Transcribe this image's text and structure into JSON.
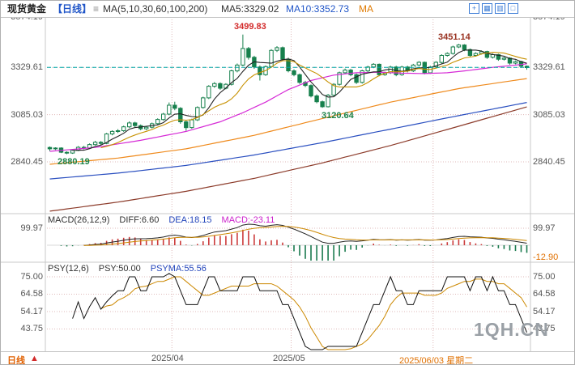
{
  "header": {
    "symbol": "现货黄金",
    "period": "【日线】",
    "menu_icon": "≡",
    "ma_settings": "MA(5,10,30,60,100,200)",
    "ma5": "MA5:3329.02",
    "ma10": "MA10:3352.73",
    "ma_extra": "MA",
    "toolbar_icons": [
      {
        "name": "crosshair-icon",
        "glyph": "+"
      },
      {
        "name": "grid-view-icon",
        "glyph": "▦"
      },
      {
        "name": "split-view-icon",
        "glyph": "▥"
      },
      {
        "name": "fullscreen-icon",
        "glyph": "□"
      }
    ]
  },
  "axis": {
    "price": {
      "t1": "3574.19",
      "t2": "3329.61",
      "t3": "3085.03",
      "t4": "2840.45"
    },
    "macd": {
      "top": "99.97",
      "last": "-12.90"
    },
    "psy": {
      "p1": "75.00",
      "p2": "64.58",
      "p3": "54.17",
      "p4": "43.75"
    }
  },
  "annotations": {
    "peak": "3499.83",
    "second_peak": "3451.14",
    "trough": "3120.64",
    "left_low": "2880.19"
  },
  "macd_row": {
    "title": "MACD(26,12,9)",
    "diff": "DIFF:6.60",
    "dea": "DEA:18.15",
    "macd": "MACD:-23.11"
  },
  "psy_row": {
    "title": "PSY(12,6)",
    "psy": "PSY:50.00",
    "psyma": "PSYMA:55.56"
  },
  "footer": {
    "period": "日线",
    "arrow": "▲",
    "date1": "2025/04",
    "date2": "2025/05",
    "date3": "2025/06/03 星期二"
  },
  "watermark": "1QH.CN",
  "chart_data": {
    "type": "candlestick",
    "title": "现货黄金 日线",
    "current_price": 3329.61,
    "price_ticks": [
      3574.19,
      3329.61,
      3085.03,
      2840.45
    ],
    "price_ylim": [
      2560,
      3600
    ],
    "macd_ticks": [
      99.97,
      -12.9
    ],
    "psy_ticks": [
      75.0,
      64.58,
      54.17,
      43.75
    ],
    "x_tick_indices": [
      22,
      43,
      68
    ],
    "x_tick_labels": [
      "2025/04",
      "2025/05",
      "2025/06/03"
    ],
    "up_color": "#ffffff",
    "down_color": "#17804d",
    "candle_outline": "#17804d",
    "ma_computed": [
      {
        "name": "MA5",
        "window": 5,
        "color": "#222222"
      },
      {
        "name": "MA10",
        "window": 10,
        "color": "#c79100"
      }
    ],
    "ma_overlays": [
      {
        "name": "MA30",
        "color": "#d62ad6",
        "points": [
          [
            0,
            2895
          ],
          [
            8,
            2915
          ],
          [
            16,
            2952
          ],
          [
            24,
            2998
          ],
          [
            30,
            3048
          ],
          [
            34,
            3095
          ],
          [
            38,
            3150
          ],
          [
            42,
            3215
          ],
          [
            46,
            3262
          ],
          [
            50,
            3290
          ],
          [
            54,
            3302
          ],
          [
            58,
            3305
          ],
          [
            62,
            3300
          ],
          [
            66,
            3298
          ],
          [
            70,
            3302
          ],
          [
            74,
            3315
          ],
          [
            78,
            3330
          ],
          [
            82,
            3342
          ],
          [
            84,
            3348
          ]
        ]
      },
      {
        "name": "MA60",
        "color": "#ef8a1c",
        "points": [
          [
            0,
            2828
          ],
          [
            12,
            2860
          ],
          [
            24,
            2908
          ],
          [
            36,
            2978
          ],
          [
            48,
            3065
          ],
          [
            60,
            3150
          ],
          [
            72,
            3220
          ],
          [
            84,
            3272
          ]
        ]
      },
      {
        "name": "MA100",
        "color": "#2a4fc0",
        "points": [
          [
            0,
            2752
          ],
          [
            12,
            2782
          ],
          [
            24,
            2822
          ],
          [
            36,
            2876
          ],
          [
            48,
            2940
          ],
          [
            60,
            3010
          ],
          [
            72,
            3080
          ],
          [
            84,
            3148
          ]
        ]
      },
      {
        "name": "MA200",
        "color": "#8c3b2a",
        "points": [
          [
            0,
            2585
          ],
          [
            12,
            2632
          ],
          [
            24,
            2688
          ],
          [
            36,
            2755
          ],
          [
            48,
            2835
          ],
          [
            60,
            2925
          ],
          [
            72,
            3025
          ],
          [
            84,
            3125
          ]
        ]
      }
    ],
    "candles": [
      [
        2915,
        2920,
        2896,
        2908
      ],
      [
        2908,
        2916,
        2902,
        2912
      ],
      [
        2912,
        2916,
        2886,
        2890
      ],
      [
        2890,
        2895,
        2880.19,
        2886
      ],
      [
        2886,
        2906,
        2882,
        2900
      ],
      [
        2900,
        2922,
        2896,
        2916
      ],
      [
        2916,
        2923,
        2905,
        2912
      ],
      [
        2912,
        2936,
        2908,
        2930
      ],
      [
        2930,
        2949,
        2925,
        2942
      ],
      [
        2942,
        2948,
        2928,
        2936
      ],
      [
        2936,
        2990,
        2932,
        2985
      ],
      [
        2985,
        3004,
        2978,
        2998
      ],
      [
        2998,
        3010,
        2990,
        3002
      ],
      [
        3002,
        3028,
        2996,
        3022
      ],
      [
        3022,
        3050,
        3016,
        3042
      ],
      [
        3042,
        3048,
        3020,
        3028
      ],
      [
        3028,
        3034,
        3004,
        3012
      ],
      [
        3012,
        3026,
        3005,
        3020
      ],
      [
        3020,
        3044,
        3014,
        3038
      ],
      [
        3038,
        3066,
        3032,
        3060
      ],
      [
        3060,
        3094,
        3054,
        3088
      ],
      [
        3088,
        3148,
        3082,
        3134
      ],
      [
        3134,
        3152,
        3108,
        3118
      ],
      [
        3118,
        3124,
        3038,
        3048
      ],
      [
        3048,
        3054,
        3002,
        3018
      ],
      [
        3018,
        3064,
        3012,
        3058
      ],
      [
        3058,
        3128,
        3052,
        3122
      ],
      [
        3122,
        3178,
        3116,
        3172
      ],
      [
        3172,
        3238,
        3166,
        3232
      ],
      [
        3232,
        3254,
        3224,
        3246
      ],
      [
        3246,
        3252,
        3214,
        3222
      ],
      [
        3222,
        3248,
        3216,
        3242
      ],
      [
        3242,
        3318,
        3236,
        3312
      ],
      [
        3312,
        3350,
        3304,
        3342
      ],
      [
        3342,
        3499.83,
        3336,
        3428
      ],
      [
        3428,
        3436,
        3370,
        3382
      ],
      [
        3382,
        3390,
        3322,
        3332
      ],
      [
        3332,
        3340,
        3262,
        3292
      ],
      [
        3292,
        3340,
        3286,
        3334
      ],
      [
        3334,
        3424,
        3328,
        3418
      ],
      [
        3418,
        3440,
        3410,
        3432
      ],
      [
        3432,
        3438,
        3364,
        3372
      ],
      [
        3372,
        3380,
        3304,
        3312
      ],
      [
        3312,
        3320,
        3284,
        3292
      ],
      [
        3292,
        3298,
        3244,
        3252
      ],
      [
        3252,
        3260,
        3228,
        3236
      ],
      [
        3236,
        3242,
        3174,
        3182
      ],
      [
        3182,
        3190,
        3144,
        3152
      ],
      [
        3152,
        3158,
        3120.64,
        3126
      ],
      [
        3126,
        3192,
        3122,
        3186
      ],
      [
        3186,
        3248,
        3180,
        3242
      ],
      [
        3242,
        3308,
        3236,
        3302
      ],
      [
        3302,
        3324,
        3296,
        3316
      ],
      [
        3316,
        3322,
        3284,
        3292
      ],
      [
        3292,
        3298,
        3244,
        3252
      ],
      [
        3252,
        3318,
        3246,
        3312
      ],
      [
        3312,
        3338,
        3306,
        3332
      ],
      [
        3332,
        3352,
        3326,
        3346
      ],
      [
        3346,
        3350,
        3284,
        3292
      ],
      [
        3292,
        3308,
        3286,
        3302
      ],
      [
        3302,
        3338,
        3296,
        3332
      ],
      [
        3332,
        3338,
        3284,
        3292
      ],
      [
        3292,
        3338,
        3286,
        3332
      ],
      [
        3332,
        3338,
        3304,
        3312
      ],
      [
        3312,
        3348,
        3306,
        3342
      ],
      [
        3342,
        3362,
        3336,
        3356
      ],
      [
        3356,
        3360,
        3294,
        3302
      ],
      [
        3302,
        3338,
        3296,
        3332
      ],
      [
        3332,
        3362,
        3326,
        3356
      ],
      [
        3356,
        3398,
        3350,
        3392
      ],
      [
        3392,
        3408,
        3386,
        3402
      ],
      [
        3402,
        3442,
        3396,
        3436
      ],
      [
        3436,
        3451.14,
        3430,
        3446
      ],
      [
        3446,
        3450,
        3414,
        3422
      ],
      [
        3422,
        3428,
        3384,
        3392
      ],
      [
        3392,
        3408,
        3386,
        3402
      ],
      [
        3402,
        3418,
        3396,
        3412
      ],
      [
        3412,
        3416,
        3374,
        3382
      ],
      [
        3382,
        3402,
        3376,
        3396
      ],
      [
        3396,
        3400,
        3364,
        3372
      ],
      [
        3372,
        3384,
        3366,
        3378
      ],
      [
        3378,
        3382,
        3344,
        3352
      ],
      [
        3352,
        3366,
        3346,
        3360
      ],
      [
        3360,
        3364,
        3328,
        3336
      ],
      [
        3336,
        3340,
        3318,
        3329
      ]
    ]
  }
}
